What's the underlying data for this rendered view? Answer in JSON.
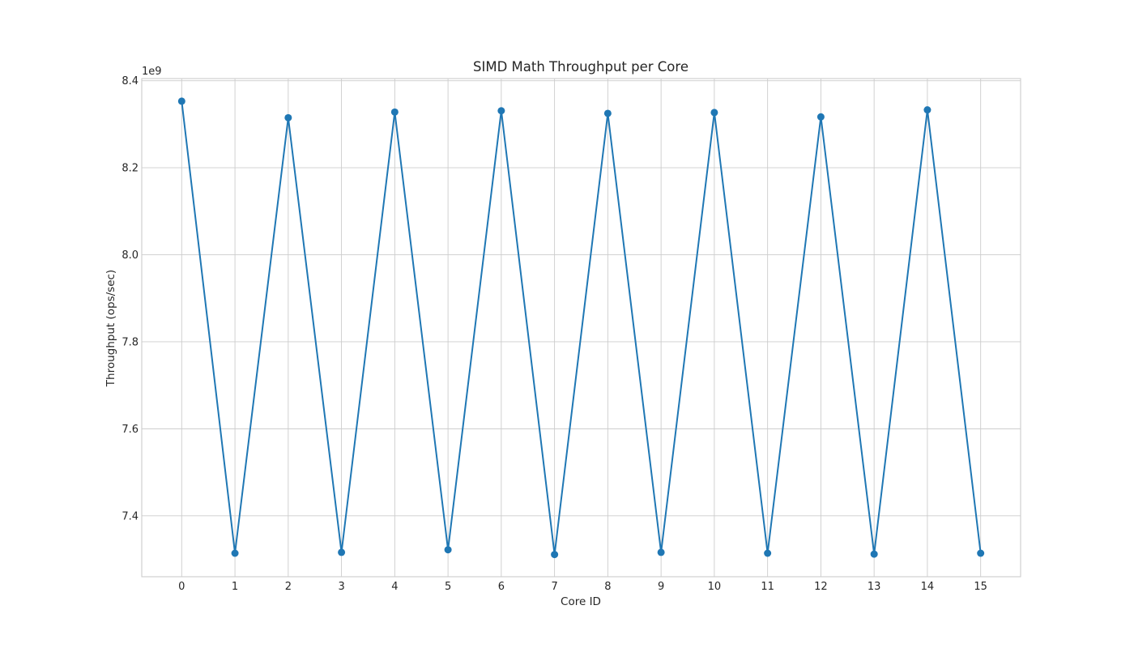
{
  "chart_data": {
    "type": "line",
    "title": "SIMD Math Throughput per Core",
    "xlabel": "Core ID",
    "ylabel": "Throughput (ops/sec)",
    "y_offset_text": "1e9",
    "x": [
      0,
      1,
      2,
      3,
      4,
      5,
      6,
      7,
      8,
      9,
      10,
      11,
      12,
      13,
      14,
      15
    ],
    "x_ticks": [
      "0",
      "1",
      "2",
      "3",
      "4",
      "5",
      "6",
      "7",
      "8",
      "9",
      "10",
      "11",
      "12",
      "13",
      "14",
      "15"
    ],
    "y_ticks": [
      7.4,
      7.6,
      7.8,
      8.0,
      8.2,
      8.4
    ],
    "y_tick_labels": [
      "7.4",
      "7.6",
      "7.8",
      "8.0",
      "8.2",
      "8.4"
    ],
    "y_tick_scale": 1000000000,
    "xlim": [
      -0.75,
      15.75
    ],
    "ylim": [
      7260000000,
      8405000000
    ],
    "grid": true,
    "series": [
      {
        "color": "#1f77b4",
        "marker": "circle",
        "values": [
          8353000000,
          7314000000,
          8315000000,
          7316000000,
          8328000000,
          7322000000,
          8331000000,
          7311000000,
          8325000000,
          7316000000,
          8327000000,
          7314000000,
          8317000000,
          7312000000,
          8333000000,
          7314000000
        ]
      }
    ]
  }
}
